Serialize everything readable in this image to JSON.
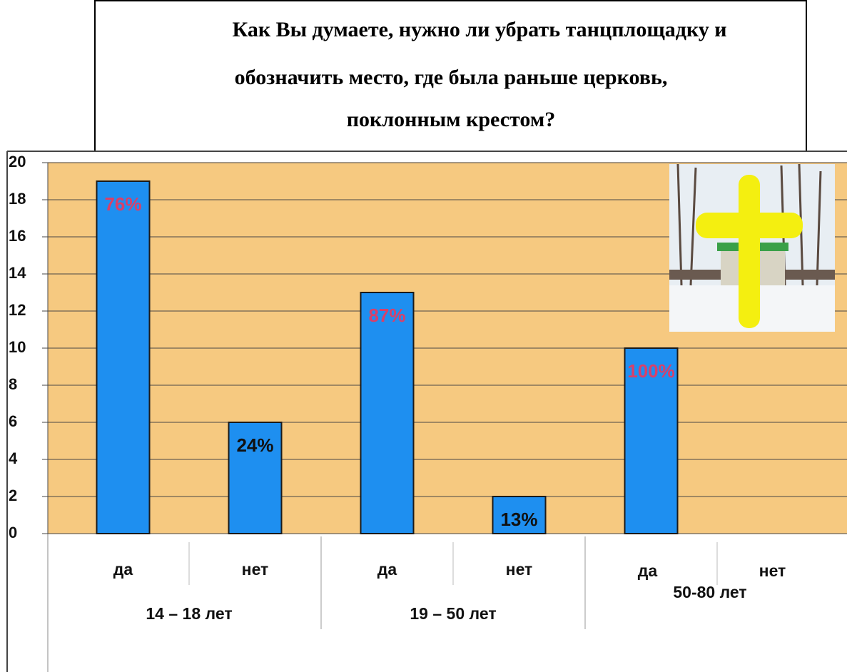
{
  "chart_data": {
    "type": "bar",
    "title_lines": [
      "Как Вы думаете, нужно ли убрать танцплощадку и",
      "обозначить место, где была раньше церковь,",
      "поклонным крестом?"
    ],
    "categories": [
      "да",
      "нет",
      "да",
      "нет",
      "да",
      "нет"
    ],
    "groups": [
      "14 – 18 лет",
      "19 – 50 лет",
      "50-80 лет"
    ],
    "values": [
      19,
      6,
      13,
      2,
      10,
      0
    ],
    "value_labels": [
      "76%",
      "24%",
      "87%",
      "13%",
      "100%",
      null
    ],
    "value_label_colors": [
      "#d8406a",
      "#111111",
      "#d8406a",
      "#111111",
      "#d8406a",
      "#111111"
    ],
    "color": "#1e8ff0",
    "background": "#f6c980",
    "ylim": [
      0,
      20
    ],
    "yticks": [
      0,
      2,
      4,
      6,
      8,
      10,
      12,
      14,
      16,
      18,
      20
    ],
    "grid": true
  }
}
